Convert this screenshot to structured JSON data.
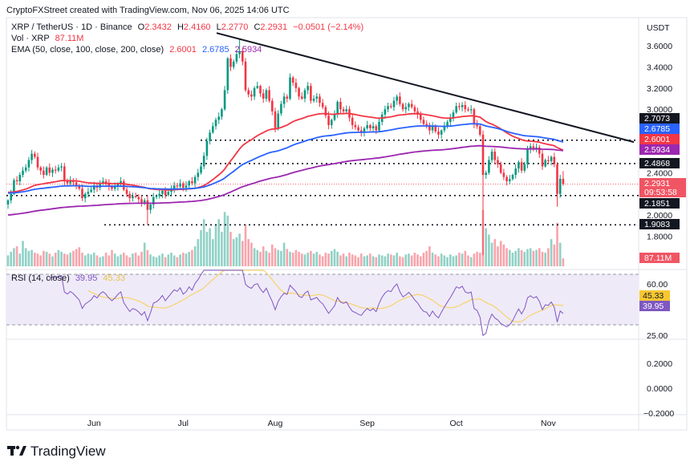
{
  "attribution": "CryptoFXStreet created with TradingView.com, Nov 06, 2025 14:06 UTC",
  "legend": {
    "symbol": "XRP / TetherUS · 1D · Binance",
    "o_label": "O",
    "o": "2.3432",
    "h_label": "H",
    "h": "2.4160",
    "l_label": "L",
    "l": "2.2770",
    "c_label": "C",
    "c": "2.2931",
    "change": "−0.0501 (−2.14%)",
    "vol_label": "Vol · XRP",
    "vol": "87.11M",
    "ema_label": "EMA (50, close, 100, close, 200, close)",
    "ema50": "2.6001",
    "ema100": "2.6785",
    "ema200": "2.5934",
    "rsi_label": "RSI (14, close)",
    "rsi": "39.95",
    "rsi_ma": "45.33"
  },
  "price_axis": {
    "currency": "USDT",
    "ticks": [
      "3.6000",
      "3.4000",
      "3.2000",
      "3.0000",
      "2.4000",
      "2.0000",
      "1.8000"
    ],
    "labels": {
      "level_1": "2.7073",
      "ema100": "2.6785",
      "ema50": "2.6001",
      "ema200": "2.5934",
      "level_2": "2.4868",
      "last_price": "2.2931",
      "countdown": "09:53:58",
      "level_3": "2.1851",
      "level_4": "1.9083",
      "volume": "87.11M"
    }
  },
  "rsi_axis": {
    "ticks": [
      "60.00",
      "25.00"
    ],
    "rsi_label": "39.95",
    "ma_label": "45.33"
  },
  "empty_pane_axis": {
    "ticks": [
      "0.2000",
      "0.0000",
      "−0.2000"
    ]
  },
  "colors": {
    "up": "#089981",
    "down": "#f23645",
    "ema50": "#f23645",
    "ema100": "#2962ff",
    "ema200": "#9c27b0",
    "rsi": "#7e57c2",
    "rsi_ma": "#f7d36b",
    "trendline": "#131722"
  },
  "logo_text": "TradingView",
  "chart_data": {
    "type": "candlestick",
    "title": "XRP / TetherUS · 1D · Binance",
    "x_tick_labels": [
      "Jun",
      "Jul",
      "Aug",
      "Sep",
      "Oct",
      "Nov"
    ],
    "y_range": [
      1.75,
      3.72
    ],
    "first_open": 2.1,
    "closes": [
      2.14,
      2.2,
      2.33,
      2.32,
      2.38,
      2.42,
      2.45,
      2.52,
      2.58,
      2.55,
      2.45,
      2.42,
      2.38,
      2.45,
      2.4,
      2.43,
      2.42,
      2.45,
      2.46,
      2.32,
      2.3,
      2.33,
      2.31,
      2.28,
      2.25,
      2.16,
      2.2,
      2.22,
      2.24,
      2.28,
      2.26,
      2.3,
      2.32,
      2.3,
      2.27,
      2.25,
      2.27,
      2.3,
      2.32,
      2.24,
      2.2,
      2.16,
      2.18,
      2.17,
      2.15,
      2.12,
      2.14,
      2.05,
      2.1,
      2.17,
      2.18,
      2.2,
      2.23,
      2.19,
      2.22,
      2.25,
      2.28,
      2.27,
      2.3,
      2.26,
      2.28,
      2.32,
      2.3,
      2.36,
      2.4,
      2.46,
      2.56,
      2.7,
      2.78,
      2.84,
      2.9,
      2.93,
      3.0,
      3.18,
      3.48,
      3.4,
      3.45,
      3.52,
      3.55,
      3.45,
      3.18,
      3.14,
      3.12,
      3.2,
      3.22,
      3.15,
      3.1,
      3.18,
      3.08,
      2.98,
      2.82,
      2.96,
      3.05,
      3.12,
      3.1,
      3.3,
      3.25,
      3.2,
      3.12,
      3.1,
      3.18,
      3.22,
      3.08,
      3.1,
      3.12,
      3.06,
      3.02,
      2.94,
      2.85,
      2.9,
      2.95,
      3.07,
      3.0,
      2.98,
      3.0,
      2.92,
      2.85,
      2.83,
      2.8,
      2.78,
      2.82,
      2.85,
      2.82,
      2.84,
      2.8,
      2.88,
      2.95,
      3.0,
      3.03,
      3.02,
      3.08,
      3.12,
      3.05,
      3.0,
      3.02,
      3.05,
      3.02,
      2.98,
      2.95,
      2.9,
      2.86,
      2.85,
      2.8,
      2.84,
      2.79,
      2.76,
      2.8,
      2.84,
      2.88,
      2.92,
      2.97,
      3.03,
      3.02,
      3.04,
      3.0,
      2.99,
      3.0,
      2.86,
      2.84,
      2.76,
      2.38,
      2.4,
      2.52,
      2.6,
      2.52,
      2.48,
      2.4,
      2.36,
      2.32,
      2.34,
      2.38,
      2.44,
      2.5,
      2.42,
      2.48,
      2.62,
      2.65,
      2.62,
      2.64,
      2.58,
      2.46,
      2.52,
      2.51,
      2.55,
      2.48,
      2.2,
      2.3432,
      2.2931
    ],
    "low_overrides": {
      "47": 1.9083,
      "160": 1.62,
      "185": 2.08,
      "187": 2.277
    },
    "high_overrides": {
      "78": 3.66,
      "187": 2.416
    },
    "volume_millions": [
      120,
      160,
      200,
      220,
      140,
      280,
      200,
      170,
      180,
      150,
      140,
      120,
      170,
      160,
      140,
      110,
      150,
      180,
      160,
      140,
      130,
      150,
      170,
      190,
      210,
      150,
      120,
      140,
      130,
      150,
      120,
      100,
      110,
      150,
      120,
      180,
      140,
      110,
      130,
      150,
      120,
      100,
      140,
      150,
      120,
      160,
      260,
      180,
      130,
      110,
      100,
      120,
      140,
      100,
      130,
      150,
      120,
      100,
      130,
      150,
      140,
      160,
      180,
      220,
      300,
      400,
      520,
      380,
      420,
      300,
      460,
      520,
      380,
      600,
      560,
      380,
      300,
      320,
      360,
      280,
      460,
      300,
      260,
      200,
      180,
      160,
      220,
      170,
      150,
      240,
      200,
      180,
      170,
      260,
      190,
      160,
      150,
      180,
      160,
      140,
      130,
      150,
      170,
      140,
      160,
      130,
      110,
      150,
      140,
      170,
      190,
      160,
      120,
      140,
      110,
      150,
      130,
      120,
      100,
      140,
      110,
      120,
      140,
      110,
      100,
      130,
      120,
      110,
      140,
      130,
      120,
      150,
      110,
      100,
      130,
      140,
      120,
      150,
      130,
      110,
      150,
      170,
      220,
      150,
      130,
      110,
      140,
      120,
      100,
      130,
      110,
      120,
      150,
      140,
      170,
      120,
      100,
      140,
      160,
      150,
      620,
      420,
      350,
      260,
      300,
      220,
      280,
      240,
      200,
      180,
      150,
      170,
      200,
      180,
      160,
      190,
      200,
      170,
      180,
      200,
      160,
      150,
      200,
      300,
      240,
      480,
      260,
      87.11
    ],
    "horizontal_levels": [
      2.7073,
      2.4868,
      2.1851,
      1.9083
    ],
    "trendline": {
      "from_price": 3.72,
      "to_price": 2.69
    },
    "ema": [
      {
        "period": 50,
        "last": 2.6001
      },
      {
        "period": 100,
        "last": 2.6785
      },
      {
        "period": 200,
        "last": 2.5934
      }
    ],
    "rsi": {
      "period": 14,
      "last": 39.95,
      "ma_last": 45.33,
      "bands": [
        70,
        30
      ]
    }
  }
}
